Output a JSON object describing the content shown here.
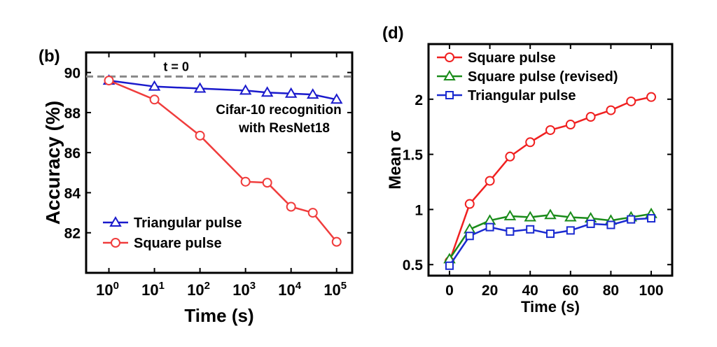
{
  "chart_data": [
    {
      "type": "line",
      "panel_label": "(b)",
      "xlabel": "Time (s)",
      "ylabel": "Accuracy (%)",
      "xscale": "log",
      "xlim": [
        0.316,
        220000
      ],
      "ylim": [
        80,
        91
      ],
      "xticks": [
        1,
        10,
        100,
        1000,
        10000,
        100000
      ],
      "xtick_labels": [
        [
          "10",
          "0"
        ],
        [
          "10",
          "1"
        ],
        [
          "10",
          "2"
        ],
        [
          "10",
          "3"
        ],
        [
          "10",
          "4"
        ],
        [
          "10",
          "5"
        ]
      ],
      "yticks": [
        82,
        84,
        86,
        88,
        90
      ],
      "reference_line": {
        "y": 89.8,
        "label": "t = 0",
        "color": "#888888",
        "style": "dashed"
      },
      "annotation": [
        "Cifar-10 recognition",
        "with ResNet18"
      ],
      "legend_position": "bottom-left",
      "x": [
        1,
        10,
        100,
        1000,
        3000,
        10000,
        30000,
        100000
      ],
      "series": [
        {
          "name": "Triangular pulse",
          "marker": "triangle",
          "color": "#1a1acc",
          "values": [
            89.6,
            89.3,
            89.2,
            89.1,
            89.0,
            88.95,
            88.9,
            88.65
          ]
        },
        {
          "name": "Square pulse",
          "marker": "circle",
          "color": "#f03c3c",
          "values": [
            89.6,
            88.65,
            86.85,
            84.55,
            84.5,
            83.3,
            83.0,
            81.55
          ]
        }
      ]
    },
    {
      "type": "line",
      "panel_label": "(d)",
      "xlabel": "Time (s)",
      "ylabel": "Mean σ",
      "xlim": [
        -10.4,
        110.4
      ],
      "ylim": [
        0.4,
        2.5
      ],
      "xticks": [
        0,
        20,
        40,
        60,
        80,
        100
      ],
      "yticks": [
        0.5,
        1,
        1.5,
        2
      ],
      "ytick_labels": [
        "0.5",
        "1",
        "1.5",
        "2"
      ],
      "legend_position": "top-left",
      "x": [
        0,
        10,
        20,
        30,
        40,
        50,
        60,
        70,
        80,
        90,
        100
      ],
      "series": [
        {
          "name": "Square pulse",
          "marker": "circle",
          "color": "#f02020",
          "values": [
            0.53,
            1.05,
            1.26,
            1.48,
            1.61,
            1.72,
            1.77,
            1.84,
            1.9,
            1.98,
            2.02
          ]
        },
        {
          "name": "Square pulse (revised)",
          "marker": "triangle",
          "color": "#1a8c1a",
          "values": [
            0.55,
            0.82,
            0.9,
            0.94,
            0.93,
            0.95,
            0.93,
            0.92,
            0.9,
            0.93,
            0.96
          ]
        },
        {
          "name": "Triangular pulse",
          "marker": "square",
          "color": "#1a2ad0",
          "values": [
            0.49,
            0.76,
            0.84,
            0.8,
            0.82,
            0.78,
            0.81,
            0.87,
            0.86,
            0.91,
            0.92
          ]
        }
      ]
    }
  ]
}
